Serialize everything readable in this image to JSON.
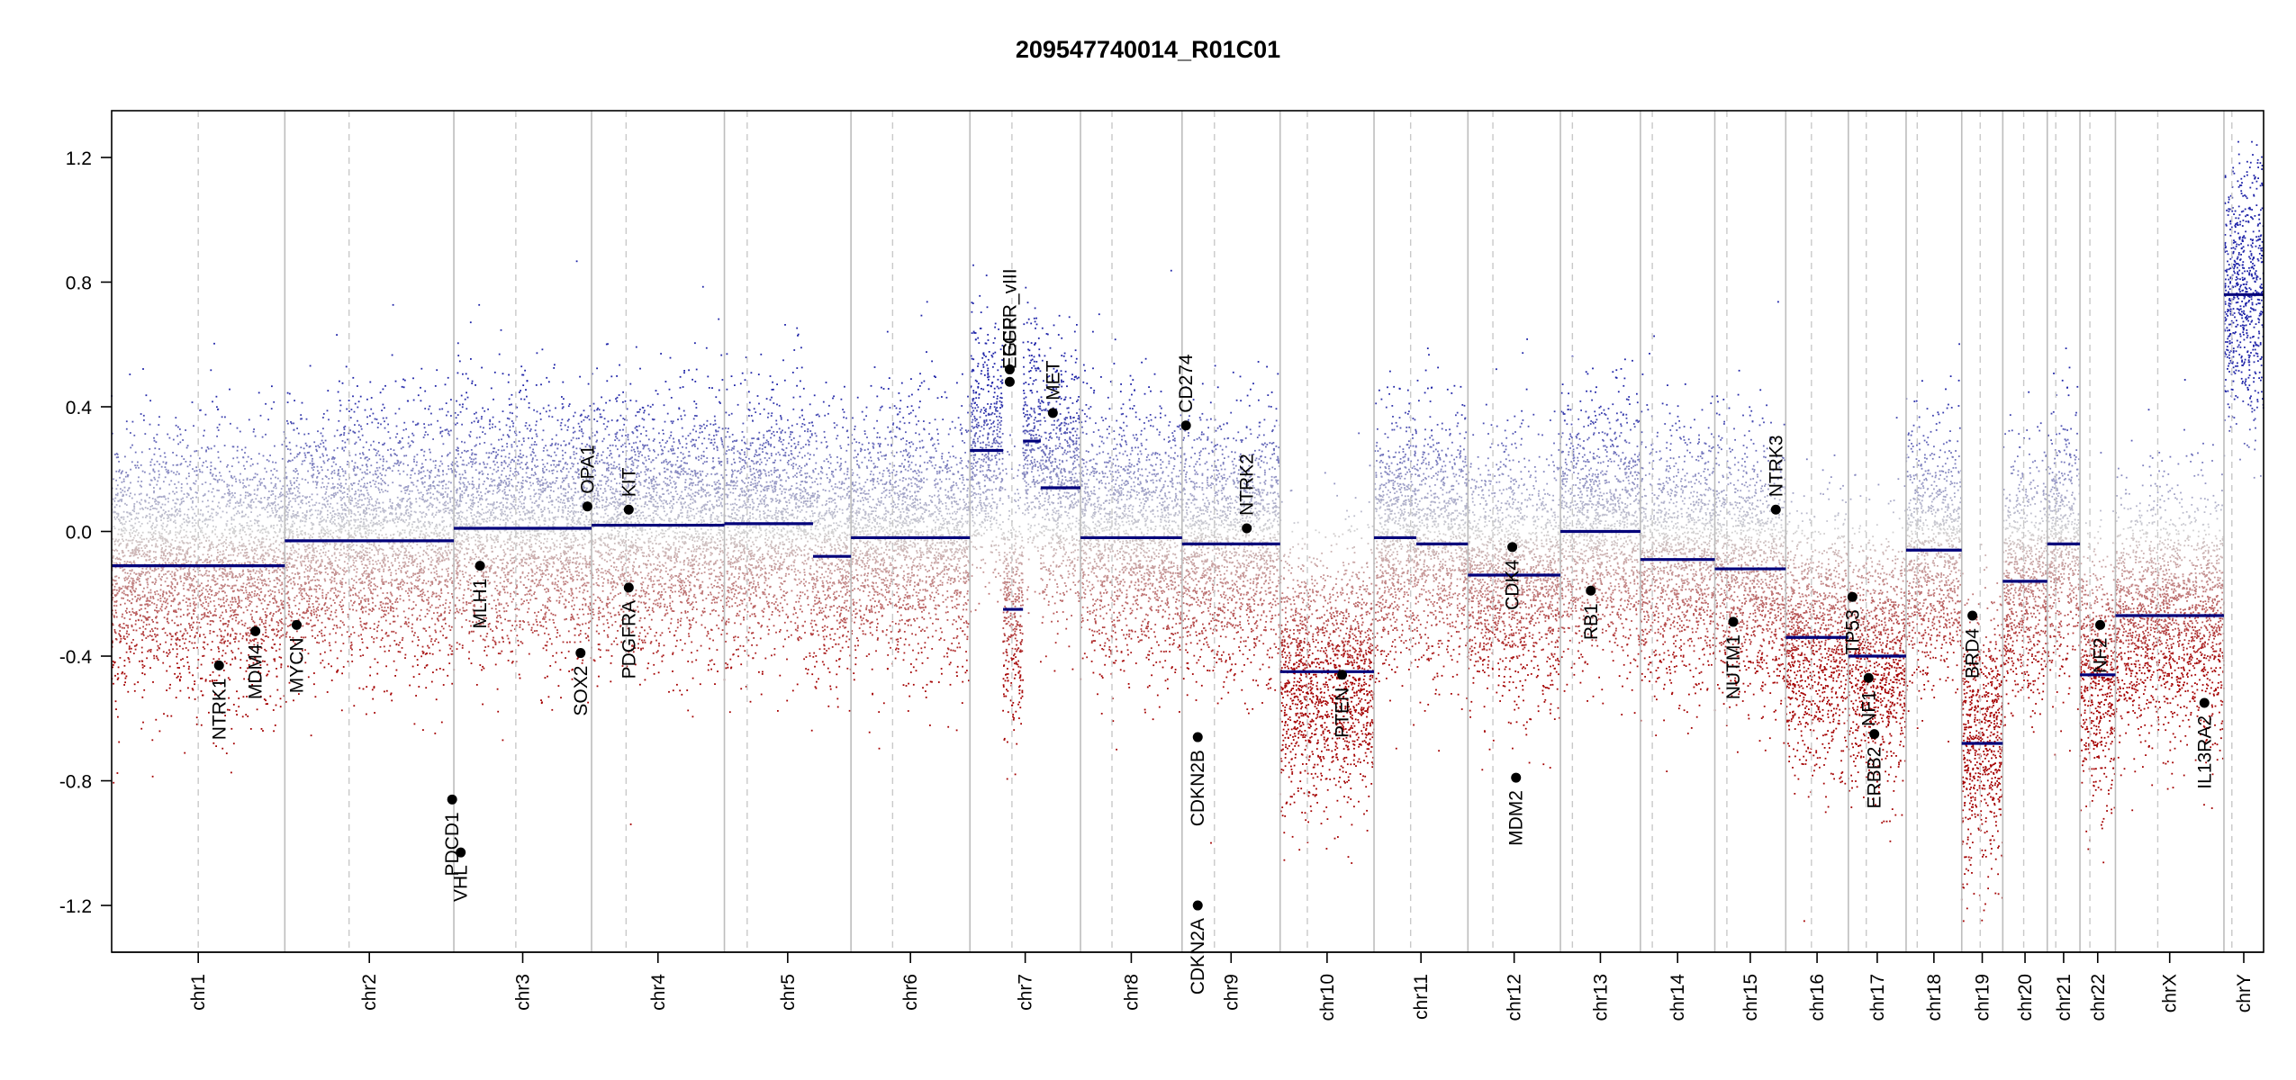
{
  "chart_data": {
    "type": "scatter",
    "title": "209547740014_R01C01",
    "xlabel": "",
    "ylabel": "",
    "ylim": [
      -1.35,
      1.35
    ],
    "y_ticks": [
      "1.2",
      "0.8",
      "0.4",
      "0.0",
      "-0.4",
      "-0.8",
      "-1.2"
    ],
    "y_tick_values": [
      1.2,
      0.8,
      0.4,
      0.0,
      -0.4,
      -0.8,
      -1.2
    ],
    "chromosomes": [
      "chr1",
      "chr2",
      "chr3",
      "chr4",
      "chr5",
      "chr6",
      "chr7",
      "chr8",
      "chr9",
      "chr10",
      "chr11",
      "chr12",
      "chr13",
      "chr14",
      "chr15",
      "chr16",
      "chr17",
      "chr18",
      "chr19",
      "chr20",
      "chr21",
      "chr22",
      "chrX",
      "chrY"
    ],
    "chromosome_sizes_mb": [
      249,
      243,
      198,
      191,
      182,
      171,
      159,
      146,
      141,
      135,
      135,
      133,
      115,
      107,
      102,
      90,
      83,
      80,
      59,
      64,
      47,
      51,
      156,
      57
    ],
    "chromosome_centromere_fraction": [
      0.5,
      0.38,
      0.45,
      0.26,
      0.18,
      0.35,
      0.38,
      0.31,
      0.33,
      0.29,
      0.39,
      0.27,
      0.15,
      0.16,
      0.17,
      0.41,
      0.31,
      0.2,
      0.45,
      0.47,
      0.26,
      0.28,
      0.39,
      0.2
    ],
    "segments": [
      {
        "chr": "chr1",
        "from": 0,
        "to": 1,
        "value": -0.11
      },
      {
        "chr": "chr2",
        "from": 0,
        "to": 1,
        "value": -0.03
      },
      {
        "chr": "chr3",
        "from": 0,
        "to": 1,
        "value": 0.01
      },
      {
        "chr": "chr4",
        "from": 0,
        "to": 1,
        "value": 0.02
      },
      {
        "chr": "chr5",
        "from": 0,
        "to": 0.7,
        "value": 0.025
      },
      {
        "chr": "chr5",
        "from": 0.7,
        "to": 1,
        "value": -0.08
      },
      {
        "chr": "chr6",
        "from": 0,
        "to": 1,
        "value": -0.02
      },
      {
        "chr": "chr7",
        "from": 0,
        "to": 0.3,
        "value": 0.26
      },
      {
        "chr": "chr7",
        "from": 0.3,
        "to": 0.48,
        "value": -0.25
      },
      {
        "chr": "chr7",
        "from": 0.48,
        "to": 0.64,
        "value": 0.29
      },
      {
        "chr": "chr7",
        "from": 0.64,
        "to": 1,
        "value": 0.14
      },
      {
        "chr": "chr8",
        "from": 0,
        "to": 1,
        "value": -0.02
      },
      {
        "chr": "chr9",
        "from": 0,
        "to": 1,
        "value": -0.04
      },
      {
        "chr": "chr10",
        "from": 0,
        "to": 1,
        "value": -0.45
      },
      {
        "chr": "chr11",
        "from": 0,
        "to": 0.45,
        "value": -0.02
      },
      {
        "chr": "chr11",
        "from": 0.45,
        "to": 1,
        "value": -0.04
      },
      {
        "chr": "chr12",
        "from": 0,
        "to": 1,
        "value": -0.14
      },
      {
        "chr": "chr13",
        "from": 0,
        "to": 1,
        "value": 0.0
      },
      {
        "chr": "chr14",
        "from": 0,
        "to": 1,
        "value": -0.09
      },
      {
        "chr": "chr15",
        "from": 0,
        "to": 1,
        "value": -0.12
      },
      {
        "chr": "chr16",
        "from": 0,
        "to": 1,
        "value": -0.34
      },
      {
        "chr": "chr17",
        "from": 0,
        "to": 1,
        "value": -0.4
      },
      {
        "chr": "chr18",
        "from": 0,
        "to": 1,
        "value": -0.06
      },
      {
        "chr": "chr19",
        "from": 0,
        "to": 1,
        "value": -0.68
      },
      {
        "chr": "chr20",
        "from": 0,
        "to": 1,
        "value": -0.16
      },
      {
        "chr": "chr21",
        "from": 0,
        "to": 1,
        "value": -0.04
      },
      {
        "chr": "chr22",
        "from": 0,
        "to": 1,
        "value": -0.46
      },
      {
        "chr": "chrX",
        "from": 0,
        "to": 1,
        "value": -0.27
      },
      {
        "chr": "chrY",
        "from": 0,
        "to": 1,
        "value": 0.76
      }
    ],
    "genes": [
      {
        "name": "NTRK1",
        "chr": "chr1",
        "pos": 0.62,
        "value": -0.43
      },
      {
        "name": "MDM4",
        "chr": "chr1",
        "pos": 0.83,
        "value": -0.32
      },
      {
        "name": "MYCN",
        "chr": "chr2",
        "pos": 0.07,
        "value": -0.3
      },
      {
        "name": "VHL",
        "chr": "chr3",
        "pos": 0.05,
        "value": -1.03
      },
      {
        "name": "PDCD1",
        "chr": "chr2",
        "pos": 0.99,
        "value": -0.86
      },
      {
        "name": "MLH1",
        "chr": "chr3",
        "pos": 0.19,
        "value": -0.11
      },
      {
        "name": "SOX2",
        "chr": "chr3",
        "pos": 0.92,
        "value": -0.39
      },
      {
        "name": "OPA1",
        "chr": "chr3",
        "pos": 0.97,
        "value": 0.08
      },
      {
        "name": "KIT",
        "chr": "chr4",
        "pos": 0.28,
        "value": 0.07
      },
      {
        "name": "PDGFRA",
        "chr": "chr4",
        "pos": 0.28,
        "value": -0.18
      },
      {
        "name": "EGFR",
        "chr": "chr7",
        "pos": 0.36,
        "value": 0.48
      },
      {
        "name": "EGFR_vIII",
        "chr": "chr7",
        "pos": 0.36,
        "value": 0.52
      },
      {
        "name": "MET",
        "chr": "chr7",
        "pos": 0.75,
        "value": 0.38
      },
      {
        "name": "CD274",
        "chr": "chr9",
        "pos": 0.04,
        "value": 0.34
      },
      {
        "name": "CDKN2A",
        "chr": "chr9",
        "pos": 0.16,
        "value": -1.2
      },
      {
        "name": "CDKN2B",
        "chr": "chr9",
        "pos": 0.16,
        "value": -0.66
      },
      {
        "name": "NTRK2",
        "chr": "chr9",
        "pos": 0.66,
        "value": 0.01
      },
      {
        "name": "PTEN",
        "chr": "chr10",
        "pos": 0.66,
        "value": -0.46
      },
      {
        "name": "CDK4",
        "chr": "chr12",
        "pos": 0.48,
        "value": -0.05
      },
      {
        "name": "MDM2",
        "chr": "chr12",
        "pos": 0.52,
        "value": -0.79
      },
      {
        "name": "RB1",
        "chr": "chr13",
        "pos": 0.38,
        "value": -0.19
      },
      {
        "name": "NUTM1",
        "chr": "chr15",
        "pos": 0.26,
        "value": -0.29
      },
      {
        "name": "NTRK3",
        "chr": "chr15",
        "pos": 0.86,
        "value": 0.07
      },
      {
        "name": "TP53",
        "chr": "chr17",
        "pos": 0.07,
        "value": -0.21
      },
      {
        "name": "NF1",
        "chr": "chr17",
        "pos": 0.35,
        "value": -0.47
      },
      {
        "name": "ERBB2",
        "chr": "chr17",
        "pos": 0.45,
        "value": -0.65
      },
      {
        "name": "BRD4",
        "chr": "chr19",
        "pos": 0.26,
        "value": -0.27
      },
      {
        "name": "NF2",
        "chr": "chr22",
        "pos": 0.57,
        "value": -0.3
      },
      {
        "name": "IL13RA2",
        "chr": "chrX",
        "pos": 0.82,
        "value": -0.55
      }
    ],
    "colors": {
      "gain": "#1f24a8",
      "loss": "#a40000",
      "neutral": "#c8c8c8",
      "segment": "#00007a",
      "boundary": "#bdbdbd",
      "centromere": "#c9c9c9",
      "gene_dot": "#000000"
    },
    "grid": false,
    "legend": "none"
  }
}
